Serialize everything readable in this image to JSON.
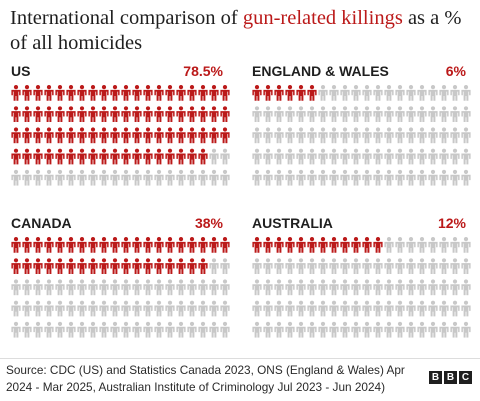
{
  "header": {
    "title_pre": "International comparison of ",
    "title_highlight": "gun-related killings",
    "title_post": " as a % of all homicides"
  },
  "chart_data": [
    {
      "type": "pictogram",
      "title": "US",
      "value_label": "78.5%",
      "value": 78.5,
      "total": 100,
      "colors": {
        "main": "#bb1919",
        "rest": "#c8c8c8"
      }
    },
    {
      "type": "pictogram",
      "title": "ENGLAND & WALES",
      "value_label": "6%",
      "value": 6,
      "total": 100,
      "colors": {
        "main": "#bb1919",
        "rest": "#c8c8c8"
      }
    },
    {
      "type": "pictogram",
      "title": "CANADA",
      "value_label": "38%",
      "value": 38,
      "total": 100,
      "colors": {
        "main": "#bb1919",
        "rest": "#c8c8c8"
      }
    },
    {
      "type": "pictogram",
      "title": "AUSTRALIA",
      "value_label": "12%",
      "value": 12,
      "total": 100,
      "colors": {
        "main": "#bb1919",
        "rest": "#c8c8c8"
      }
    }
  ],
  "footer": {
    "source": "Source: CDC (US) and Statistics Canada 2023, ONS (England & Wales) Apr 2024 - Mar 2025, Australian Institute of Criminology Jul 2023 - Jun 2024)",
    "logo_letters": [
      "B",
      "B",
      "C"
    ]
  }
}
